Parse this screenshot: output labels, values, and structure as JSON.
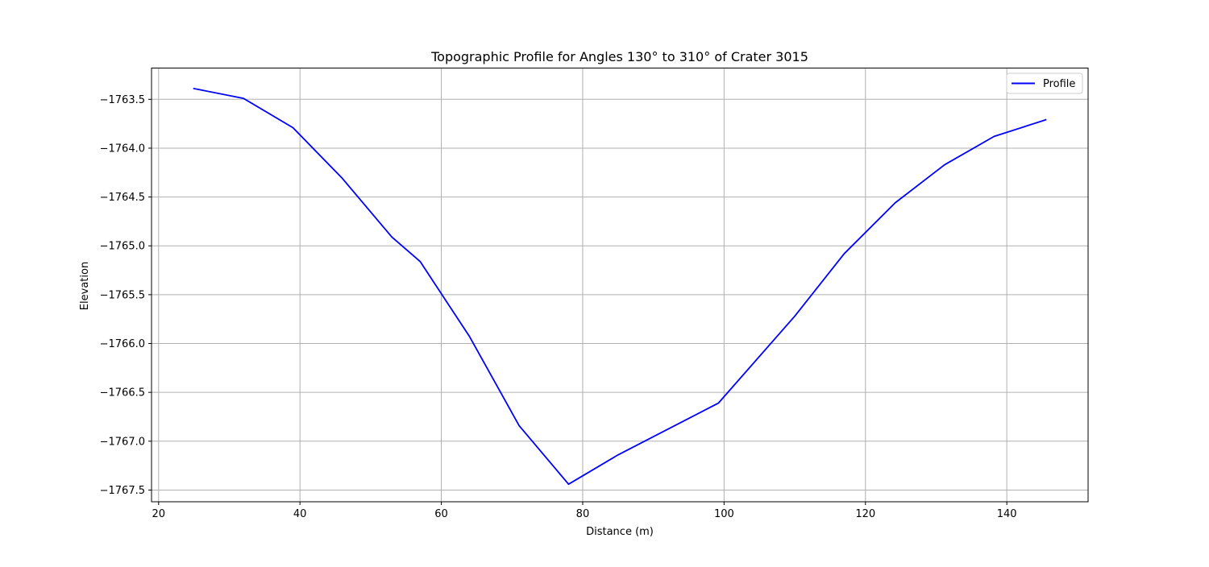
{
  "chart_data": {
    "type": "line",
    "title": "Topographic Profile for Angles 130° to 310° of Crater 3015",
    "xlabel": "Distance (m)",
    "ylabel": "Elevation",
    "xlim": [
      19,
      151.5
    ],
    "ylim": [
      -1767.62,
      -1763.18
    ],
    "xticks": [
      20,
      40,
      60,
      80,
      100,
      120,
      140
    ],
    "yticks": [
      -1763.5,
      -1764.0,
      -1764.5,
      -1765.0,
      -1765.5,
      -1766.0,
      -1766.5,
      -1767.0,
      -1767.5
    ],
    "xtick_labels": [
      "20",
      "40",
      "60",
      "80",
      "100",
      "120",
      "140"
    ],
    "ytick_labels": [
      "−1763.5",
      "−1764.0",
      "−1764.5",
      "−1765.0",
      "−1765.5",
      "−1766.0",
      "−1766.5",
      "−1767.0",
      "−1767.5"
    ],
    "grid": true,
    "legend_position": "top-right",
    "series": [
      {
        "name": "Profile",
        "color": "#0000ff",
        "x": [
          25,
          32,
          39,
          46,
          53,
          57,
          64,
          71,
          78,
          85,
          99.2,
          110,
          117,
          124.2,
          131.2,
          138.2,
          145.5
        ],
        "y": [
          -1763.39,
          -1763.49,
          -1763.79,
          -1764.31,
          -1764.91,
          -1765.16,
          -1765.93,
          -1766.84,
          -1767.44,
          -1767.14,
          -1766.61,
          -1765.72,
          -1765.08,
          -1764.56,
          -1764.17,
          -1763.88,
          -1763.71
        ]
      }
    ]
  }
}
